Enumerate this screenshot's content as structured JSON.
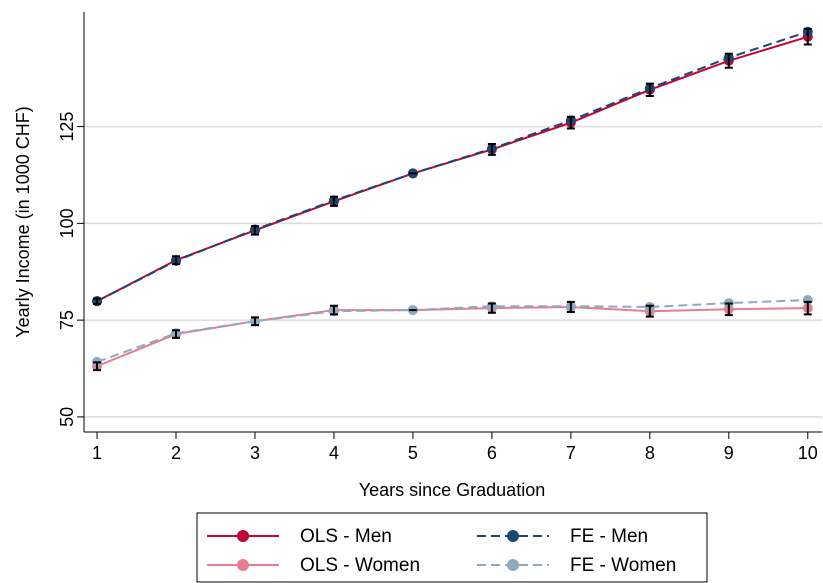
{
  "chart_data": {
    "type": "line",
    "x_label": "Years since Graduation",
    "y_label": "Yearly Income (in 1000 CHF)",
    "x": [
      1,
      2,
      3,
      4,
      5,
      6,
      7,
      8,
      9,
      10
    ],
    "xlim": [
      0.835,
      10.18
    ],
    "xticks": [
      1,
      2,
      3,
      4,
      5,
      6,
      7,
      8,
      9,
      10
    ],
    "ylim": [
      46.1,
      154.6
    ],
    "yticks": [
      50,
      75,
      100,
      125
    ],
    "grid": true,
    "legend": "bottom",
    "series": [
      {
        "name": "OLS - Men",
        "color": "#c10534",
        "dashed": false,
        "values": [
          79.9,
          90.5,
          98.2,
          105.7,
          112.9,
          119.1,
          126.0,
          134.5,
          142.0,
          148.2
        ],
        "errors": [
          0.7,
          1.0,
          1.1,
          1.2,
          0,
          1.4,
          1.5,
          1.6,
          1.8,
          2.0
        ]
      },
      {
        "name": "FE - Men",
        "color": "#1a476f",
        "dashed": true,
        "values": [
          79.9,
          90.3,
          98.4,
          105.9,
          112.9,
          119.3,
          126.6,
          134.9,
          142.8,
          149.5
        ]
      },
      {
        "name": "OLS - Women",
        "color": "#e37e93",
        "dashed": false,
        "values": [
          63.1,
          71.4,
          74.7,
          77.6,
          77.6,
          78.1,
          78.4,
          77.3,
          77.8,
          78.1
        ],
        "errors": [
          1.0,
          1.0,
          1.0,
          1.1,
          0,
          1.2,
          1.3,
          1.4,
          1.5,
          1.6
        ]
      },
      {
        "name": "FE - Women",
        "color": "#90a8c0",
        "dashed": true,
        "values": [
          64.2,
          71.6,
          74.7,
          77.3,
          77.6,
          78.6,
          78.6,
          78.4,
          79.4,
          80.2
        ]
      }
    ]
  }
}
